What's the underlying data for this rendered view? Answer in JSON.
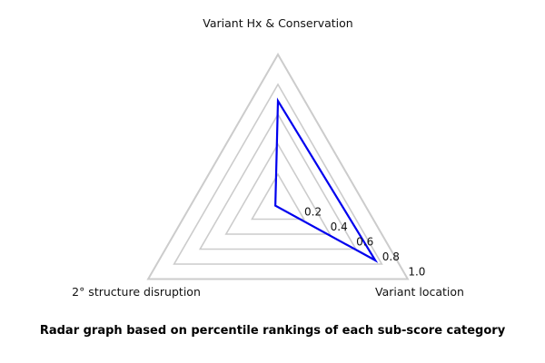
{
  "chart_data": {
    "type": "radar",
    "categories": [
      "Variant Hx & Conservation",
      "Variant location",
      "2° structure disruption"
    ],
    "series": [
      {
        "name": "percentile-ranking",
        "values": [
          0.69,
          0.75,
          0.02
        ]
      }
    ],
    "values": [
      0.69,
      0.75,
      0.02
    ],
    "ticks": [
      0.2,
      0.4,
      0.6,
      0.8,
      1.0
    ],
    "tick_labels": [
      "0.2",
      "0.4",
      "0.6",
      "0.8",
      "1.0"
    ],
    "radial_range": [
      0,
      1.0
    ],
    "grid": true,
    "legend": false,
    "caption": "Radar graph based on percentile rankings of each sub-score category",
    "colors": {
      "line": "#0000ee",
      "grid": "#cccccc",
      "text": "#111111",
      "background": "#ffffff"
    }
  }
}
